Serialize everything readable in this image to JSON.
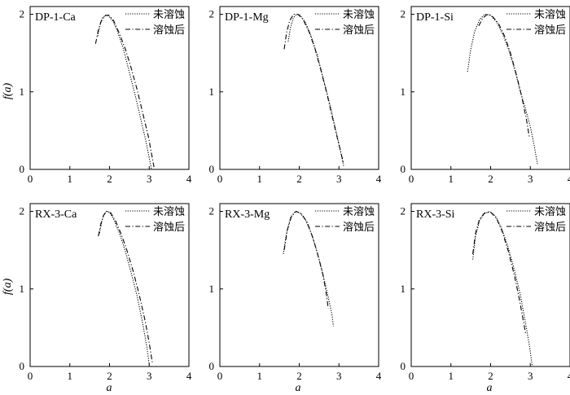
{
  "figure": {
    "ylabel": "f(a)",
    "xlabel": "a",
    "legend": [
      "未溶蚀",
      "溶蚀后"
    ]
  },
  "chart_data": [
    {
      "type": "line",
      "title": "DP-1-Ca",
      "xlim": [
        0,
        4
      ],
      "ylim": [
        0,
        2.1
      ],
      "xticks": [
        "0",
        "1",
        "2",
        "3",
        "4"
      ],
      "yticks": [
        "0",
        "1",
        "2"
      ],
      "series": [
        {
          "name": "未溶蚀",
          "style": "dotted",
          "x": [
            1.7,
            1.76,
            1.82,
            1.9,
            1.98,
            2.1,
            2.2,
            2.35,
            2.5,
            2.65,
            2.8,
            2.92,
            3.02,
            3.06
          ],
          "y": [
            1.72,
            1.86,
            1.95,
            1.99,
            1.98,
            1.9,
            1.78,
            1.55,
            1.25,
            0.95,
            0.62,
            0.36,
            0.1,
            0.0
          ]
        },
        {
          "name": "溶蚀后",
          "style": "dashdot",
          "x": [
            1.65,
            1.71,
            1.78,
            1.88,
            1.98,
            2.1,
            2.25,
            2.4,
            2.55,
            2.7,
            2.85,
            2.98,
            3.08,
            3.12
          ],
          "y": [
            1.62,
            1.78,
            1.9,
            1.98,
            1.99,
            1.92,
            1.75,
            1.55,
            1.3,
            1.02,
            0.7,
            0.42,
            0.14,
            0.03
          ]
        }
      ]
    },
    {
      "type": "line",
      "title": "DP-1-Mg",
      "xlim": [
        0,
        4
      ],
      "ylim": [
        0,
        2.1
      ],
      "xticks": [
        "0",
        "1",
        "2",
        "3",
        "4"
      ],
      "yticks": [
        "0",
        "1",
        "2"
      ],
      "series": [
        {
          "name": "未溶蚀",
          "style": "dotted",
          "x": [
            1.72,
            1.78,
            1.85,
            1.93,
            2.02,
            2.15,
            2.3,
            2.45,
            2.6,
            2.75,
            2.9,
            3.02,
            3.12
          ],
          "y": [
            1.65,
            1.83,
            1.95,
            2.0,
            1.99,
            1.9,
            1.72,
            1.48,
            1.18,
            0.88,
            0.55,
            0.28,
            0.04
          ]
        },
        {
          "name": "溶蚀后",
          "style": "dashdot",
          "x": [
            1.62,
            1.68,
            1.76,
            1.86,
            1.97,
            2.1,
            2.25,
            2.4,
            2.55,
            2.7,
            2.85,
            2.98,
            3.12
          ],
          "y": [
            1.55,
            1.76,
            1.92,
            2.0,
            2.0,
            1.93,
            1.77,
            1.55,
            1.27,
            0.97,
            0.64,
            0.36,
            0.07
          ]
        }
      ]
    },
    {
      "type": "line",
      "title": "DP-1-Si",
      "xlim": [
        0,
        4
      ],
      "ylim": [
        0,
        2.1
      ],
      "xticks": [
        "0",
        "1",
        "2",
        "3",
        "4"
      ],
      "yticks": [
        "0",
        "1",
        "2"
      ],
      "series": [
        {
          "name": "未溶蚀",
          "style": "dotted",
          "x": [
            1.42,
            1.5,
            1.6,
            1.72,
            1.85,
            2.0,
            2.15,
            2.3,
            2.45,
            2.6,
            2.75,
            2.88,
            3.0,
            3.1,
            3.18
          ],
          "y": [
            1.26,
            1.55,
            1.78,
            1.93,
            2.0,
            1.99,
            1.9,
            1.75,
            1.55,
            1.3,
            1.0,
            0.78,
            0.55,
            0.3,
            0.07
          ]
        },
        {
          "name": "溶蚀后",
          "style": "dashdot",
          "x": [
            1.7,
            1.8,
            1.92,
            2.05,
            2.2,
            2.35,
            2.5,
            2.65,
            2.78,
            2.9,
            2.98
          ],
          "y": [
            1.85,
            1.95,
            2.0,
            1.97,
            1.88,
            1.72,
            1.5,
            1.22,
            0.95,
            0.65,
            0.4
          ]
        }
      ]
    },
    {
      "type": "line",
      "title": "RX-3-Ca",
      "xlim": [
        0,
        4
      ],
      "ylim": [
        0,
        2.1
      ],
      "xticks": [
        "0",
        "1",
        "2",
        "3",
        "4"
      ],
      "yticks": [
        "0",
        "1",
        "2"
      ],
      "series": [
        {
          "name": "未溶蚀",
          "style": "dotted",
          "x": [
            1.75,
            1.8,
            1.86,
            1.92,
            2.0,
            2.1,
            2.25,
            2.4,
            2.55,
            2.7,
            2.85,
            2.95,
            3.0
          ],
          "y": [
            1.72,
            1.86,
            1.96,
            2.0,
            1.99,
            1.9,
            1.72,
            1.48,
            1.2,
            0.9,
            0.52,
            0.22,
            0.02
          ]
        },
        {
          "name": "溶蚀后",
          "style": "dashdot",
          "x": [
            1.72,
            1.78,
            1.85,
            1.93,
            2.03,
            2.15,
            2.3,
            2.45,
            2.6,
            2.75,
            2.9,
            3.0,
            3.08
          ],
          "y": [
            1.68,
            1.84,
            1.95,
            2.0,
            1.98,
            1.88,
            1.7,
            1.48,
            1.22,
            0.92,
            0.58,
            0.3,
            0.04
          ]
        }
      ]
    },
    {
      "type": "line",
      "title": "RX-3-Mg",
      "xlim": [
        0,
        4
      ],
      "ylim": [
        0,
        2.1
      ],
      "xticks": [
        "0",
        "1",
        "2",
        "3",
        "4"
      ],
      "yticks": [
        "0",
        "1",
        "2"
      ],
      "series": [
        {
          "name": "未溶蚀",
          "style": "dotted",
          "x": [
            1.6,
            1.68,
            1.78,
            1.9,
            2.02,
            2.15,
            2.3,
            2.45,
            2.6,
            2.72,
            2.82,
            2.86
          ],
          "y": [
            1.45,
            1.72,
            1.92,
            2.0,
            1.98,
            1.9,
            1.72,
            1.48,
            1.18,
            0.92,
            0.68,
            0.52
          ]
        },
        {
          "name": "溶蚀后",
          "style": "dashdot",
          "x": [
            1.62,
            1.7,
            1.8,
            1.92,
            2.05,
            2.2,
            2.35,
            2.5,
            2.6,
            2.68,
            2.73
          ],
          "y": [
            1.5,
            1.76,
            1.93,
            2.0,
            1.97,
            1.86,
            1.65,
            1.38,
            1.17,
            0.95,
            0.75
          ]
        }
      ]
    },
    {
      "type": "line",
      "title": "RX-3-Si",
      "xlim": [
        0,
        4
      ],
      "ylim": [
        0,
        2.1
      ],
      "xticks": [
        "0",
        "1",
        "2",
        "3",
        "4"
      ],
      "yticks": [
        "0",
        "1",
        "2"
      ],
      "series": [
        {
          "name": "未溶蚀",
          "style": "dotted",
          "x": [
            1.55,
            1.62,
            1.72,
            1.84,
            1.98,
            2.12,
            2.28,
            2.44,
            2.6,
            2.75,
            2.88,
            2.98,
            3.05
          ],
          "y": [
            1.38,
            1.68,
            1.88,
            1.97,
            2.0,
            1.94,
            1.78,
            1.54,
            1.24,
            0.92,
            0.56,
            0.26,
            0.0
          ]
        },
        {
          "name": "溶蚀后",
          "style": "dashdot",
          "x": [
            1.55,
            1.62,
            1.72,
            1.85,
            2.0,
            2.15,
            2.3,
            2.45,
            2.6,
            2.72,
            2.82,
            2.88
          ],
          "y": [
            1.45,
            1.72,
            1.9,
            1.98,
            1.99,
            1.91,
            1.73,
            1.48,
            1.17,
            0.88,
            0.6,
            0.43
          ]
        }
      ]
    }
  ]
}
